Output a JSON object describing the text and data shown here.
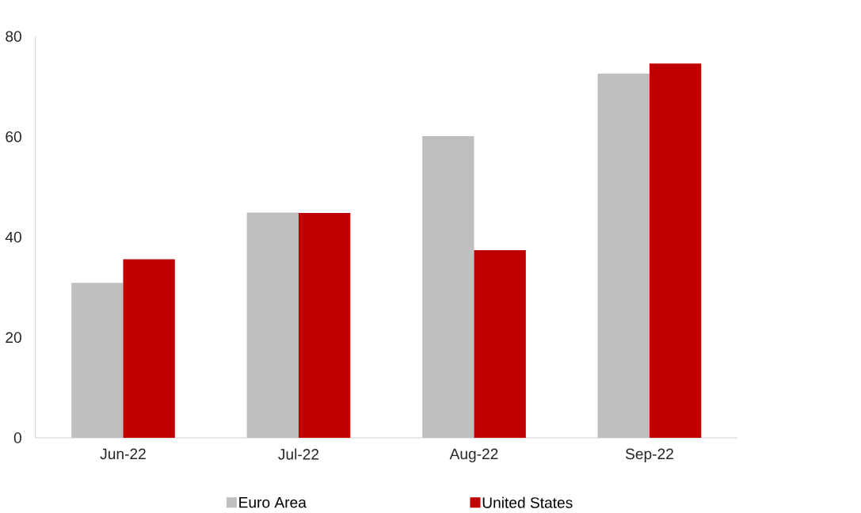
{
  "chart_data": {
    "type": "bar",
    "categories": [
      "Jun-22",
      "Jul-22",
      "Aug-22",
      "Sep-22"
    ],
    "series": [
      {
        "name": "Euro Area",
        "color": "#bfbfbf",
        "values": [
          30.9,
          44.9,
          60.1,
          72.6
        ]
      },
      {
        "name": "United States",
        "color": "#c00000",
        "values": [
          35.6,
          44.8,
          37.4,
          74.6
        ]
      }
    ],
    "ylim": [
      0,
      80
    ],
    "yticks": [
      0,
      20,
      40,
      60,
      80
    ],
    "legend": "bottom"
  }
}
